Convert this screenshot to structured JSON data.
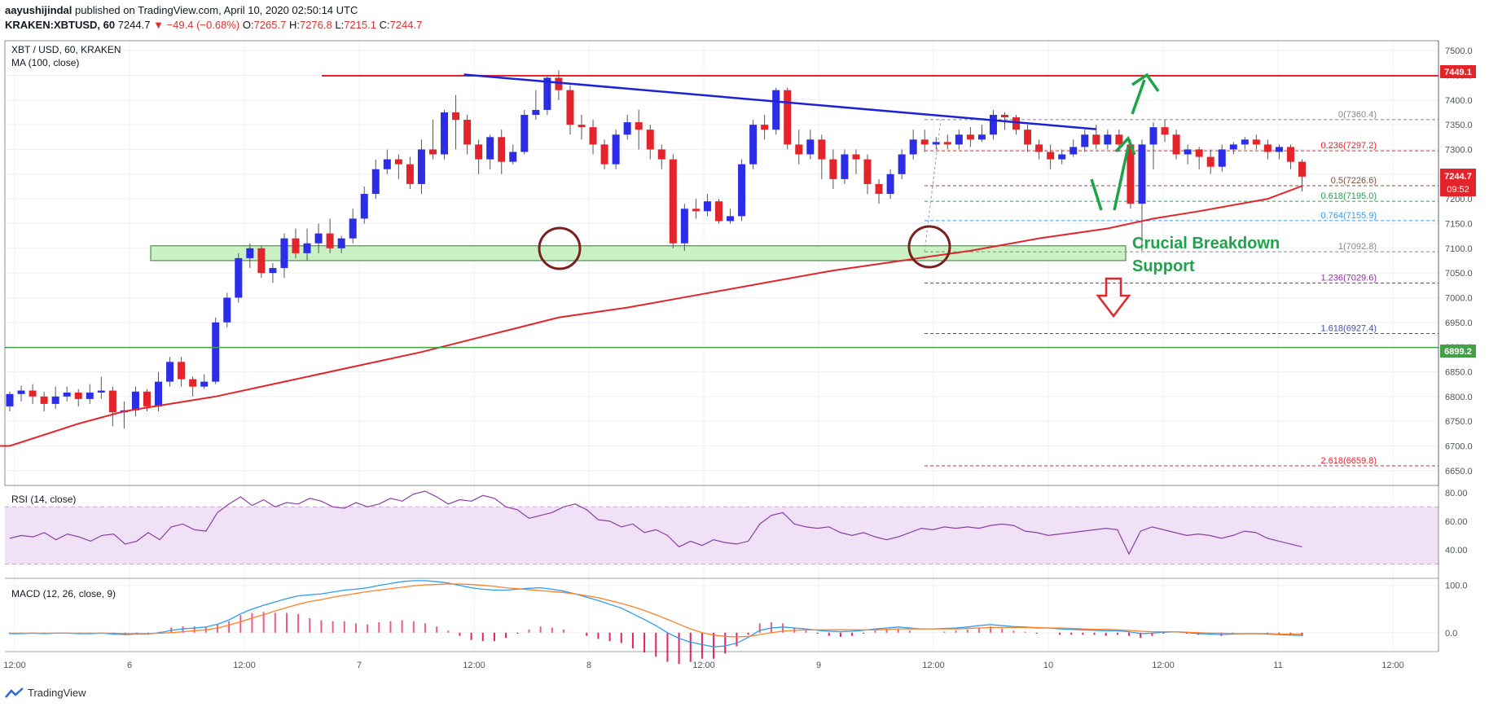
{
  "header": {
    "author": "aayushijindal",
    "published_text": "published on TradingView.com, April 10, 2020 02:50:14 UTC",
    "symbol": "KRAKEN:XBTUSD, 60",
    "last": "7244.7",
    "change": "−49.4 (−0.68%)",
    "o_label": "O:",
    "o_value": "7265.7",
    "h_label": "H:",
    "h_value": "7276.8",
    "l_label": "L:",
    "l_value": "7215.1",
    "c_label": "C:",
    "c_value": "7244.7"
  },
  "pane_labels": {
    "main_title": "XBT / USD, 60, KRAKEN",
    "ma_label": "MA (100, close)",
    "rsi_label": "RSI (14, close)",
    "macd_label": "MACD (12, 26, close, 9)"
  },
  "annotations": {
    "support_line1": "Crucial Breakdown",
    "support_line2": "Support"
  },
  "price_badges": {
    "resistance": "7449.1",
    "last_price": "7244.7",
    "countdown": "09:52",
    "support": "6899.2"
  },
  "footer": {
    "brand": "TradingView"
  },
  "colors": {
    "up": "#2b2ee6",
    "down": "#e3242b",
    "ma": "#e3242b",
    "resistance": "#e3242b",
    "trendline": "#1e22d6",
    "support": "#43a047",
    "arrow_green": "#1ea34a",
    "zone": "#c9f1c3",
    "rsi_band": "#f0e1f7",
    "rsi_line": "#8a3fa3",
    "macd": "#2a9df4",
    "signal": "#ff7f27",
    "hist": "#e91e63"
  },
  "chart_data": {
    "type": "candlestick",
    "title": "XBT / USD, 60, KRAKEN",
    "price_axis_ticks": [
      7500,
      7450,
      7400,
      7350,
      7300,
      7250,
      7200,
      7150,
      7100,
      7050,
      7000,
      6950,
      6900,
      6850,
      6800,
      6750,
      6700,
      6650
    ],
    "price_axis_labels": [
      "7500.0",
      "7450.0",
      "7400.0",
      "7350.0",
      "7300.0",
      "7250.0",
      "7200.0",
      "7150.0",
      "7100.0",
      "7050.0",
      "7000.0",
      "6950.0",
      "6900.0",
      "6850.0",
      "6800.0",
      "6750.0",
      "6700.0",
      "6650.0"
    ],
    "ylim": [
      6620,
      7520
    ],
    "time_axis_labels": [
      "12:00",
      "6",
      "12:00",
      "7",
      "12:00",
      "8",
      "12:00",
      "9",
      "12:00",
      "10",
      "12:00",
      "11",
      "12:00"
    ],
    "candles": [
      [
        6780,
        6805,
        6770,
        6810
      ],
      [
        6805,
        6812,
        6790,
        6822
      ],
      [
        6812,
        6800,
        6785,
        6825
      ],
      [
        6800,
        6785,
        6770,
        6810
      ],
      [
        6785,
        6800,
        6775,
        6820
      ],
      [
        6800,
        6808,
        6790,
        6820
      ],
      [
        6808,
        6795,
        6780,
        6815
      ],
      [
        6795,
        6808,
        6785,
        6825
      ],
      [
        6808,
        6812,
        6795,
        6840
      ],
      [
        6812,
        6768,
        6740,
        6820
      ],
      [
        6768,
        6772,
        6735,
        6790
      ],
      [
        6772,
        6810,
        6760,
        6820
      ],
      [
        6810,
        6780,
        6770,
        6815
      ],
      [
        6780,
        6830,
        6770,
        6850
      ],
      [
        6830,
        6870,
        6820,
        6880
      ],
      [
        6870,
        6835,
        6820,
        6880
      ],
      [
        6835,
        6820,
        6800,
        6840
      ],
      [
        6820,
        6830,
        6815,
        6845
      ],
      [
        6830,
        6950,
        6825,
        6960
      ],
      [
        6950,
        7000,
        6940,
        7010
      ],
      [
        7000,
        7080,
        6990,
        7090
      ],
      [
        7080,
        7100,
        7060,
        7110
      ],
      [
        7100,
        7050,
        7040,
        7105
      ],
      [
        7050,
        7060,
        7030,
        7070
      ],
      [
        7060,
        7120,
        7040,
        7130
      ],
      [
        7120,
        7090,
        7080,
        7140
      ],
      [
        7090,
        7110,
        7075,
        7140
      ],
      [
        7110,
        7130,
        7090,
        7150
      ],
      [
        7130,
        7100,
        7090,
        7160
      ],
      [
        7100,
        7120,
        7090,
        7125
      ],
      [
        7120,
        7160,
        7110,
        7180
      ],
      [
        7160,
        7210,
        7150,
        7225
      ],
      [
        7210,
        7260,
        7200,
        7280
      ],
      [
        7260,
        7280,
        7250,
        7300
      ],
      [
        7280,
        7270,
        7240,
        7290
      ],
      [
        7270,
        7230,
        7220,
        7285
      ],
      [
        7230,
        7300,
        7210,
        7320
      ],
      [
        7300,
        7290,
        7280,
        7360
      ],
      [
        7290,
        7375,
        7280,
        7380
      ],
      [
        7375,
        7360,
        7300,
        7410
      ],
      [
        7360,
        7310,
        7290,
        7370
      ],
      [
        7310,
        7280,
        7250,
        7320
      ],
      [
        7280,
        7325,
        7260,
        7330
      ],
      [
        7325,
        7275,
        7250,
        7340
      ],
      [
        7275,
        7295,
        7270,
        7310
      ],
      [
        7295,
        7370,
        7290,
        7380
      ],
      [
        7370,
        7380,
        7360,
        7420
      ],
      [
        7380,
        7445,
        7370,
        7450
      ],
      [
        7445,
        7420,
        7400,
        7460
      ],
      [
        7420,
        7350,
        7330,
        7430
      ],
      [
        7350,
        7345,
        7320,
        7370
      ],
      [
        7345,
        7310,
        7290,
        7360
      ],
      [
        7310,
        7270,
        7260,
        7320
      ],
      [
        7270,
        7330,
        7260,
        7340
      ],
      [
        7330,
        7355,
        7320,
        7370
      ],
      [
        7355,
        7340,
        7300,
        7380
      ],
      [
        7340,
        7300,
        7280,
        7350
      ],
      [
        7300,
        7280,
        7260,
        7310
      ],
      [
        7280,
        7110,
        7100,
        7290
      ],
      [
        7110,
        7180,
        7095,
        7190
      ],
      [
        7180,
        7175,
        7160,
        7200
      ],
      [
        7175,
        7195,
        7165,
        7210
      ],
      [
        7195,
        7155,
        7150,
        7200
      ],
      [
        7155,
        7165,
        7150,
        7180
      ],
      [
        7165,
        7270,
        7155,
        7280
      ],
      [
        7270,
        7350,
        7260,
        7360
      ],
      [
        7350,
        7340,
        7320,
        7370
      ],
      [
        7340,
        7420,
        7330,
        7425
      ],
      [
        7420,
        7310,
        7300,
        7425
      ],
      [
        7310,
        7290,
        7270,
        7340
      ],
      [
        7290,
        7320,
        7280,
        7340
      ],
      [
        7320,
        7280,
        7240,
        7330
      ],
      [
        7280,
        7240,
        7220,
        7300
      ],
      [
        7240,
        7290,
        7230,
        7300
      ],
      [
        7290,
        7280,
        7250,
        7300
      ],
      [
        7280,
        7230,
        7210,
        7290
      ],
      [
        7230,
        7210,
        7190,
        7240
      ],
      [
        7210,
        7250,
        7200,
        7260
      ],
      [
        7250,
        7290,
        7240,
        7300
      ],
      [
        7290,
        7320,
        7280,
        7340
      ],
      [
        7320,
        7310,
        7295,
        7340
      ],
      [
        7310,
        7315,
        7300,
        7325
      ],
      [
        7315,
        7310,
        7300,
        7330
      ],
      [
        7310,
        7330,
        7300,
        7340
      ],
      [
        7330,
        7320,
        7305,
        7345
      ],
      [
        7320,
        7330,
        7315,
        7350
      ],
      [
        7330,
        7370,
        7320,
        7380
      ],
      [
        7370,
        7365,
        7340,
        7375
      ],
      [
        7365,
        7340,
        7330,
        7370
      ],
      [
        7340,
        7310,
        7295,
        7350
      ],
      [
        7310,
        7295,
        7280,
        7320
      ],
      [
        7295,
        7280,
        7260,
        7310
      ],
      [
        7280,
        7290,
        7270,
        7300
      ],
      [
        7290,
        7305,
        7285,
        7320
      ],
      [
        7305,
        7330,
        7295,
        7340
      ],
      [
        7330,
        7310,
        7300,
        7350
      ],
      [
        7310,
        7330,
        7300,
        7340
      ],
      [
        7330,
        7310,
        7295,
        7340
      ],
      [
        7310,
        7190,
        7180,
        7320
      ],
      [
        7190,
        7310,
        7095,
        7320
      ],
      [
        7310,
        7345,
        7260,
        7355
      ],
      [
        7345,
        7330,
        7315,
        7360
      ],
      [
        7330,
        7290,
        7280,
        7340
      ],
      [
        7290,
        7300,
        7270,
        7310
      ],
      [
        7300,
        7285,
        7260,
        7305
      ],
      [
        7285,
        7265,
        7250,
        7300
      ],
      [
        7265,
        7300,
        7255,
        7310
      ],
      [
        7300,
        7310,
        7290,
        7315
      ],
      [
        7310,
        7320,
        7300,
        7325
      ],
      [
        7320,
        7310,
        7300,
        7330
      ],
      [
        7310,
        7295,
        7280,
        7320
      ],
      [
        7295,
        7305,
        7280,
        7310
      ],
      [
        7305,
        7275,
        7260,
        7310
      ],
      [
        7275,
        7245,
        7215,
        7280
      ]
    ],
    "ma100": [
      [
        0,
        6700
      ],
      [
        6,
        6745
      ],
      [
        10,
        6770
      ],
      [
        14,
        6785
      ],
      [
        18,
        6800
      ],
      [
        24,
        6830
      ],
      [
        30,
        6860
      ],
      [
        36,
        6890
      ],
      [
        42,
        6925
      ],
      [
        48,
        6960
      ],
      [
        54,
        6980
      ],
      [
        60,
        7005
      ],
      [
        66,
        7030
      ],
      [
        72,
        7055
      ],
      [
        78,
        7075
      ],
      [
        84,
        7095
      ],
      [
        90,
        7120
      ],
      [
        96,
        7140
      ],
      [
        100,
        7160
      ],
      [
        104,
        7175
      ],
      [
        110,
        7200
      ],
      [
        113,
        7226
      ]
    ],
    "levels": {
      "resistance": 7449.1,
      "support_zone": [
        7075,
        7105
      ],
      "horizontal_support": 6899.2,
      "trendline": [
        [
          39,
          7450
        ],
        [
          109,
          7345
        ]
      ]
    },
    "fibonacci": [
      {
        "ratio": "0",
        "label": "0(7360.4)",
        "price": 7360.4,
        "color": "#888888"
      },
      {
        "ratio": "0.236",
        "label": "0.236(7297.2)",
        "price": 7297.2,
        "color": "#e3242b"
      },
      {
        "ratio": "0.5",
        "label": "0.5(7226.6)",
        "price": 7226.6,
        "color": "#7b4c37"
      },
      {
        "ratio": "0.618",
        "label": "0.618(7195.0)",
        "price": 7195.0,
        "color": "#1ea34a"
      },
      {
        "ratio": "0.764",
        "label": "0.764(7155.9)",
        "price": 7155.9,
        "color": "#2a9df4"
      },
      {
        "ratio": "1",
        "label": "1(7092.8)",
        "price": 7092.8,
        "color": "#888888"
      },
      {
        "ratio": "1.236",
        "label": "1.236(7029.6)",
        "price": 7029.6,
        "color": "#9c27b0"
      },
      {
        "ratio": "1.618",
        "label": "1.618(6927.4)",
        "price": 6927.4,
        "color": "#3f51b5"
      },
      {
        "ratio": "2.618",
        "label": "2.618(6659.8)",
        "price": 6659.8,
        "color": "#e3242b"
      }
    ],
    "rsi": {
      "ticks": [
        "80.00",
        "60.00",
        "40.00"
      ],
      "tick_values": [
        80,
        60,
        40
      ],
      "band": [
        30,
        70
      ],
      "ylim": [
        20,
        85
      ],
      "values": [
        48,
        50,
        49,
        52,
        47,
        51,
        49,
        46,
        50,
        51,
        44,
        46,
        52,
        47,
        56,
        58,
        54,
        53,
        66,
        72,
        77,
        71,
        75,
        70,
        73,
        72,
        76,
        74,
        70,
        69,
        73,
        70,
        72,
        76,
        74,
        79,
        81,
        77,
        72,
        75,
        74,
        78,
        76,
        70,
        68,
        62,
        64,
        66,
        70,
        72,
        68,
        61,
        60,
        56,
        58,
        52,
        54,
        50,
        42,
        46,
        43,
        47,
        45,
        44,
        46,
        58,
        64,
        66,
        58,
        56,
        55,
        56,
        52,
        50,
        52,
        49,
        47,
        49,
        52,
        55,
        54,
        56,
        55,
        56,
        55,
        57,
        58,
        57,
        53,
        52,
        50,
        51,
        52,
        53,
        54,
        55,
        54,
        37,
        53,
        56,
        54,
        52,
        50,
        51,
        50,
        48,
        50,
        53,
        52,
        48,
        46,
        44,
        42
      ],
      "xlabel": "",
      "ylabel": ""
    },
    "macd": {
      "ticks": [
        "100.0",
        "0.0"
      ],
      "tick_values": [
        100,
        0
      ],
      "ylim": [
        -40,
        115
      ],
      "macd": [
        -2,
        -2,
        -1,
        -2,
        -1,
        -1,
        -2,
        -2,
        -1,
        -3,
        -4,
        -3,
        -3,
        0,
        5,
        8,
        10,
        12,
        18,
        27,
        40,
        50,
        58,
        65,
        72,
        78,
        80,
        82,
        86,
        90,
        92,
        95,
        100,
        104,
        108,
        110,
        110,
        108,
        105,
        100,
        95,
        92,
        90,
        90,
        92,
        94,
        95,
        92,
        88,
        82,
        75,
        68,
        60,
        52,
        40,
        28,
        15,
        0,
        -12,
        -20,
        -25,
        -30,
        -28,
        -22,
        -10,
        5,
        10,
        12,
        10,
        8,
        5,
        3,
        2,
        3,
        5,
        8,
        10,
        12,
        10,
        8,
        8,
        9,
        10,
        12,
        15,
        17,
        15,
        13,
        12,
        10,
        10,
        8,
        7,
        6,
        5,
        4,
        4,
        2,
        -2,
        -1,
        1,
        2,
        0,
        -2,
        -3,
        -4,
        -3,
        -2,
        -2,
        -3,
        -4,
        -5,
        -6
      ],
      "signal": [
        -1,
        -1,
        -1,
        -1,
        -1,
        -1,
        -1,
        -1,
        -1,
        -1,
        -2,
        -2,
        -2,
        -1,
        0,
        2,
        4,
        6,
        10,
        16,
        23,
        31,
        38,
        46,
        53,
        60,
        66,
        70,
        75,
        79,
        83,
        87,
        90,
        93,
        96,
        99,
        101,
        102,
        103,
        103,
        102,
        100,
        98,
        95,
        93,
        91,
        89,
        87,
        85,
        82,
        78,
        74,
        68,
        62,
        55,
        47,
        38,
        28,
        18,
        8,
        0,
        -5,
        -8,
        -9,
        -8,
        -4,
        0,
        3,
        5,
        6,
        6,
        6,
        6,
        6,
        6,
        6,
        7,
        8,
        8,
        8,
        8,
        8,
        8,
        9,
        10,
        11,
        11,
        11,
        11,
        11,
        10,
        10,
        9,
        8,
        7,
        7,
        6,
        5,
        3,
        2,
        2,
        2,
        1,
        0,
        -1,
        -1,
        -2,
        -2,
        -2,
        -2,
        -3,
        -3,
        -3
      ],
      "xlabel": "",
      "ylabel": ""
    }
  }
}
